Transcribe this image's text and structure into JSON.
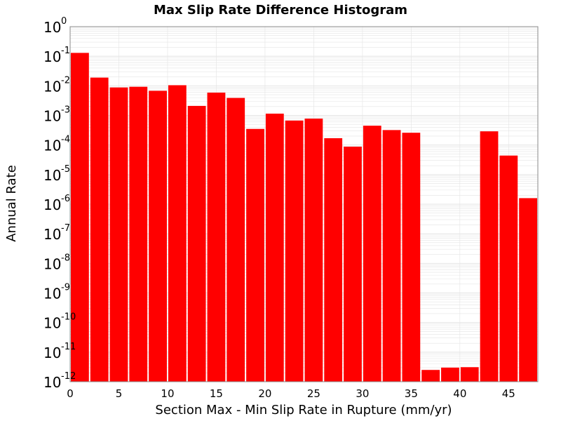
{
  "chart_data": {
    "type": "bar",
    "title": "Max Slip Rate Difference Histogram",
    "xlabel": "Section Max - Min Slip Rate in Rupture (mm/yr)",
    "ylabel": "Annual Rate",
    "y_scale": "log",
    "ylim": [
      1e-12,
      1
    ],
    "xlim": [
      0,
      48
    ],
    "bin_width": 2,
    "x_ticks": [
      "0",
      "5",
      "10",
      "15",
      "20",
      "25",
      "30",
      "35",
      "40",
      "45"
    ],
    "x_tick_values": [
      0,
      5,
      10,
      15,
      20,
      25,
      30,
      35,
      40,
      45
    ],
    "y_ticks": [
      {
        "base": "10",
        "exp": "0",
        "value": 1
      },
      {
        "base": "10",
        "exp": "-1",
        "value": 0.1
      },
      {
        "base": "10",
        "exp": "-2",
        "value": 0.01
      },
      {
        "base": "10",
        "exp": "-3",
        "value": 0.001
      },
      {
        "base": "10",
        "exp": "-4",
        "value": 0.0001
      },
      {
        "base": "10",
        "exp": "-5",
        "value": 1e-05
      },
      {
        "base": "10",
        "exp": "-6",
        "value": 1e-06
      },
      {
        "base": "10",
        "exp": "-7",
        "value": 1e-07
      },
      {
        "base": "10",
        "exp": "-8",
        "value": 1e-08
      },
      {
        "base": "10",
        "exp": "-9",
        "value": 1e-09
      },
      {
        "base": "10",
        "exp": "-10",
        "value": 1e-10
      },
      {
        "base": "10",
        "exp": "-11",
        "value": 1e-11
      },
      {
        "base": "10",
        "exp": "-12",
        "value": 1e-12
      }
    ],
    "bins": [
      {
        "x": 1,
        "value": 0.13
      },
      {
        "x": 3,
        "value": 0.019
      },
      {
        "x": 5,
        "value": 0.0088
      },
      {
        "x": 7,
        "value": 0.0093
      },
      {
        "x": 9,
        "value": 0.0068
      },
      {
        "x": 11,
        "value": 0.0105
      },
      {
        "x": 13,
        "value": 0.0021
      },
      {
        "x": 15,
        "value": 0.0059
      },
      {
        "x": 17,
        "value": 0.0039
      },
      {
        "x": 19,
        "value": 0.00035
      },
      {
        "x": 21,
        "value": 0.00115
      },
      {
        "x": 23,
        "value": 0.00067
      },
      {
        "x": 25,
        "value": 0.00078
      },
      {
        "x": 27,
        "value": 0.00017
      },
      {
        "x": 29,
        "value": 8.8e-05
      },
      {
        "x": 31,
        "value": 0.00045
      },
      {
        "x": 33,
        "value": 0.00032
      },
      {
        "x": 35,
        "value": 0.00026
      },
      {
        "x": 37,
        "value": 2.5e-12
      },
      {
        "x": 39,
        "value": 3e-12
      },
      {
        "x": 41,
        "value": 3.1e-12
      },
      {
        "x": 43,
        "value": 0.00029
      },
      {
        "x": 45,
        "value": 4.4e-05
      },
      {
        "x": 47,
        "value": 1.6e-06
      }
    ],
    "bar_color": "#ff0000",
    "grid": true,
    "grid_color": "#e4e4e4",
    "plot_background": "#ffffff"
  }
}
